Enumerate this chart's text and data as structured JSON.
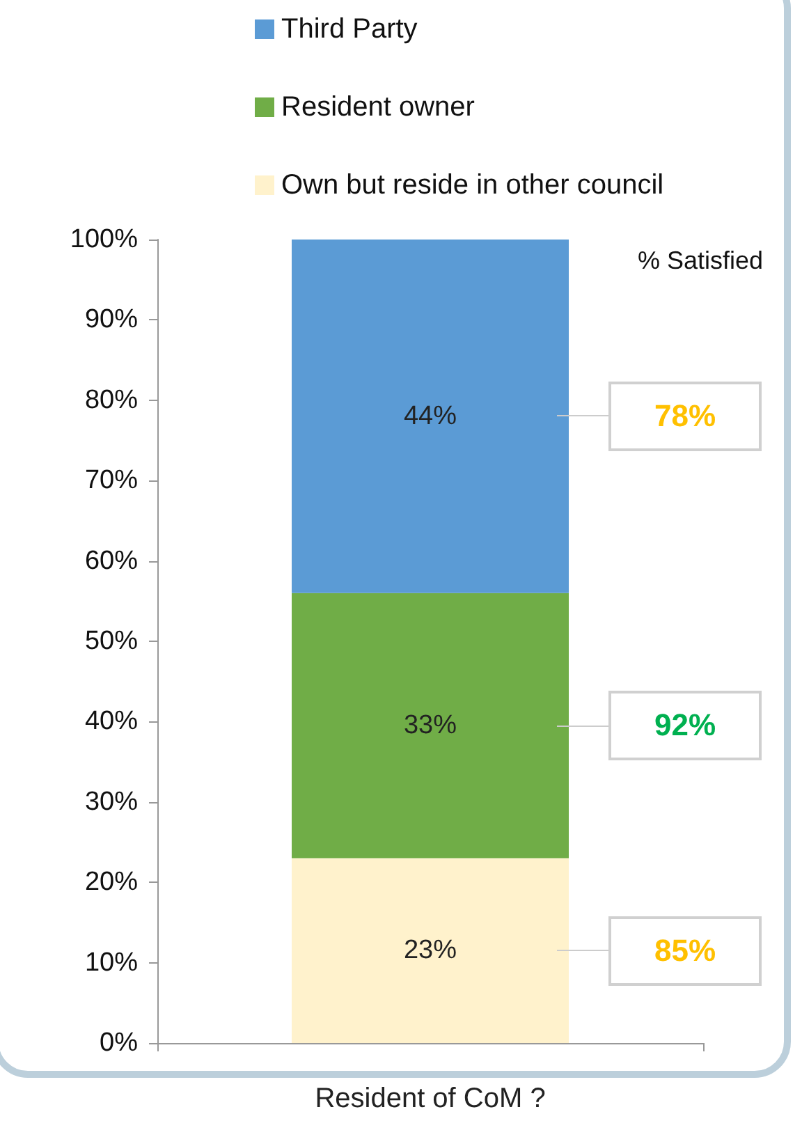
{
  "chart_data": {
    "type": "bar",
    "stacked": true,
    "xlabel": "Resident of CoM ?",
    "categories": [
      null
    ],
    "series": [
      {
        "name": "Own but reside in other council",
        "color": "#fff2cc",
        "values": [
          23
        ],
        "value_labels": [
          "23%"
        ]
      },
      {
        "name": "Resident owner",
        "color": "#70ad47",
        "values": [
          33
        ],
        "value_labels": [
          "33%"
        ]
      },
      {
        "name": "Third Party",
        "color": "#5b9bd5",
        "values": [
          44
        ],
        "value_labels": [
          "44%"
        ]
      }
    ],
    "ylim": [
      0,
      100
    ],
    "yticks": [
      {
        "value": 0,
        "label": "0%"
      },
      {
        "value": 10,
        "label": "10%"
      },
      {
        "value": 20,
        "label": "20%"
      },
      {
        "value": 30,
        "label": "30%"
      },
      {
        "value": 40,
        "label": "40%"
      },
      {
        "value": 50,
        "label": "50%"
      },
      {
        "value": 60,
        "label": "60%"
      },
      {
        "value": 70,
        "label": "70%"
      },
      {
        "value": 80,
        "label": "80%"
      },
      {
        "value": 90,
        "label": "90%"
      },
      {
        "value": 100,
        "label": "100%"
      }
    ],
    "grid": false,
    "legend": "top",
    "annotations": [
      "% Satisfied",
      "78%",
      "92%",
      "85%"
    ]
  }
}
